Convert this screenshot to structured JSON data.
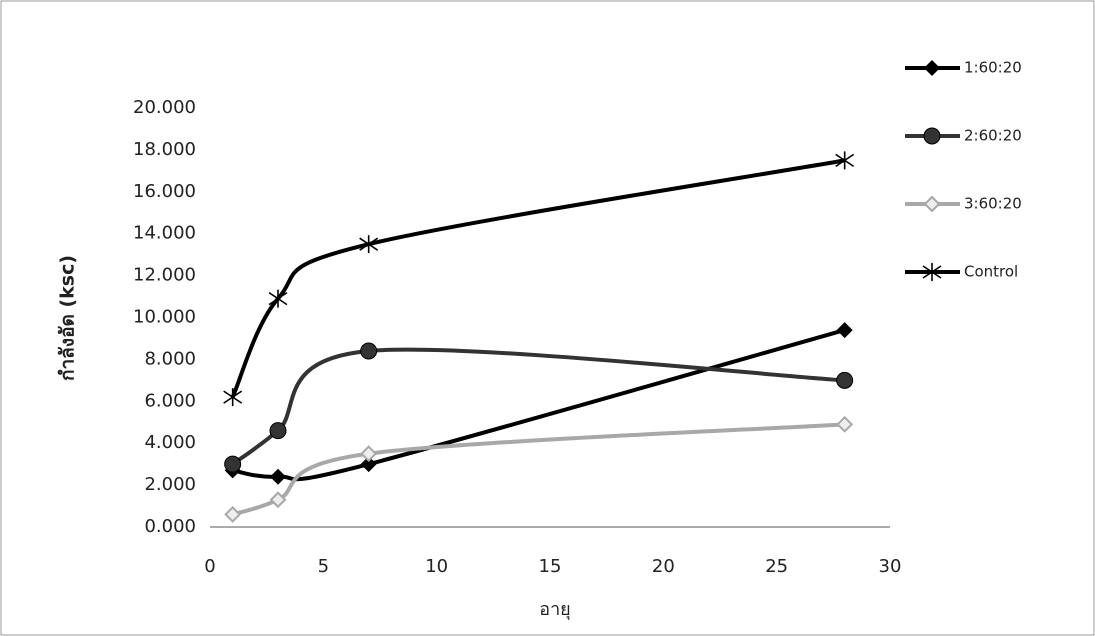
{
  "chart_data": {
    "type": "line",
    "x": [
      1,
      3,
      7,
      28
    ],
    "series": [
      {
        "name": "1:60:20",
        "color": "#000000",
        "marker": "diamond",
        "values": [
          2.7,
          2.4,
          3.0,
          9.4
        ]
      },
      {
        "name": "2:60:20",
        "color": "#333333",
        "marker": "circle",
        "values": [
          3.0,
          4.6,
          8.4,
          7.0
        ]
      },
      {
        "name": "3:60:20",
        "color": "#a8a8a8",
        "marker": "diamond-open",
        "values": [
          0.6,
          1.3,
          3.5,
          4.9
        ]
      },
      {
        "name": "Control",
        "color": "#000000",
        "marker": "asterisk",
        "values": [
          6.2,
          10.9,
          13.5,
          17.5
        ]
      }
    ],
    "xlabel": "อายุ",
    "ylabel": "กำลังอัด (ksc)",
    "xlim": [
      0,
      30
    ],
    "xticks": [
      0,
      5,
      10,
      15,
      20,
      25,
      30
    ],
    "ylim": [
      0,
      20
    ],
    "yticks": [
      {
        "value": 0,
        "label": "0.000"
      },
      {
        "value": 2,
        "label": "2.000"
      },
      {
        "value": 4,
        "label": "4.000"
      },
      {
        "value": 6,
        "label": "6.000"
      },
      {
        "value": 8,
        "label": "8.000"
      },
      {
        "value": 10,
        "label": "10.000"
      },
      {
        "value": 12,
        "label": "12.000"
      },
      {
        "value": 14,
        "label": "14.000"
      },
      {
        "value": 16,
        "label": "16.000"
      },
      {
        "value": 18,
        "label": "18.000"
      },
      {
        "value": 20,
        "label": "20.000"
      }
    ],
    "smooth": true,
    "grid": false,
    "legend": "right"
  }
}
